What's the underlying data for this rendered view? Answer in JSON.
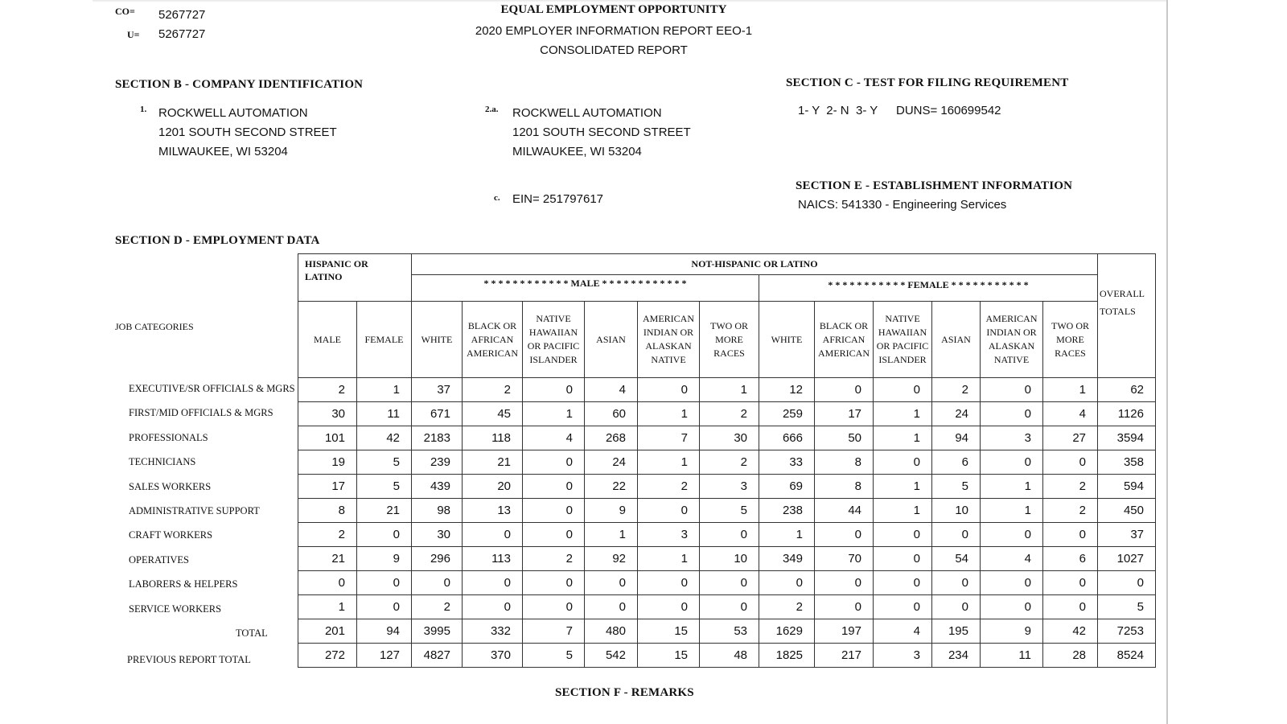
{
  "header": {
    "co_label": "CO=",
    "co_value": "5267727",
    "u_label": "U=",
    "u_value": "5267727",
    "title": "EQUAL EMPLOYMENT OPPORTUNITY",
    "subtitle": "2020 EMPLOYER INFORMATION REPORT EEO-1",
    "report_type": "CONSOLIDATED REPORT"
  },
  "section_b": {
    "title": "SECTION B - COMPANY IDENTIFICATION",
    "item1_label": "1.",
    "item1_lines": [
      "ROCKWELL AUTOMATION",
      "1201 SOUTH SECOND STREET",
      "MILWAUKEE, WI 53204"
    ],
    "item2a_label": "2.a.",
    "item2a_lines": [
      "ROCKWELL AUTOMATION",
      "1201 SOUTH SECOND STREET",
      "MILWAUKEE, WI 53204"
    ],
    "item_c_label": "c.",
    "ein": "EIN= 251797617"
  },
  "section_c": {
    "title": "SECTION C - TEST FOR FILING REQUIREMENT",
    "answers": "1- Y  2- N  3- Y",
    "duns": "DUNS= 160699542"
  },
  "section_e": {
    "title": "SECTION E - ESTABLISHMENT INFORMATION",
    "naics": "NAICS: 541330 - Engineering Services"
  },
  "section_d": {
    "title": "SECTION D - EMPLOYMENT DATA",
    "job_categories_label": "JOB CATEGORIES",
    "hispanic_header": "HISPANIC OR LATINO",
    "not_hispanic_header": "NOT-HISPANIC OR LATINO",
    "male_header": "* * * * * * * * * * * * MALE * * * * * * * * * * * *",
    "female_header": "* * * * * * * * * * * FEMALE * * * * * * * * * * *",
    "overall_header": "OVERALL TOTALS",
    "columns": [
      "MALE",
      "FEMALE",
      "WHITE",
      "BLACK OR AFRICAN AMERICAN",
      "NATIVE HAWAIIAN OR PACIFIC ISLANDER",
      "ASIAN",
      "AMERICAN INDIAN OR ALASKAN NATIVE",
      "TWO OR MORE RACES",
      "WHITE",
      "BLACK OR AFRICAN AMERICAN",
      "NATIVE HAWAIIAN OR PACIFIC ISLANDER",
      "ASIAN",
      "AMERICAN INDIAN OR ALASKAN NATIVE",
      "TWO OR MORE RACES"
    ],
    "rows": [
      {
        "label": "EXECUTIVE/SR OFFICIALS & MGRS",
        "values": [
          2,
          1,
          37,
          2,
          0,
          4,
          0,
          1,
          12,
          0,
          0,
          2,
          0,
          1,
          62
        ]
      },
      {
        "label": "FIRST/MID OFFICIALS & MGRS",
        "values": [
          30,
          11,
          671,
          45,
          1,
          60,
          1,
          2,
          259,
          17,
          1,
          24,
          0,
          4,
          1126
        ]
      },
      {
        "label": "PROFESSIONALS",
        "values": [
          101,
          42,
          2183,
          118,
          4,
          268,
          7,
          30,
          666,
          50,
          1,
          94,
          3,
          27,
          3594
        ]
      },
      {
        "label": "TECHNICIANS",
        "values": [
          19,
          5,
          239,
          21,
          0,
          24,
          1,
          2,
          33,
          8,
          0,
          6,
          0,
          0,
          358
        ]
      },
      {
        "label": "SALES WORKERS",
        "values": [
          17,
          5,
          439,
          20,
          0,
          22,
          2,
          3,
          69,
          8,
          1,
          5,
          1,
          2,
          594
        ]
      },
      {
        "label": "ADMINISTRATIVE SUPPORT",
        "values": [
          8,
          21,
          98,
          13,
          0,
          9,
          0,
          5,
          238,
          44,
          1,
          10,
          1,
          2,
          450
        ]
      },
      {
        "label": "CRAFT WORKERS",
        "values": [
          2,
          0,
          30,
          0,
          0,
          1,
          3,
          0,
          1,
          0,
          0,
          0,
          0,
          0,
          37
        ]
      },
      {
        "label": "OPERATIVES",
        "values": [
          21,
          9,
          296,
          113,
          2,
          92,
          1,
          10,
          349,
          70,
          0,
          54,
          4,
          6,
          1027
        ]
      },
      {
        "label": "LABORERS & HELPERS",
        "values": [
          0,
          0,
          0,
          0,
          0,
          0,
          0,
          0,
          0,
          0,
          0,
          0,
          0,
          0,
          0
        ]
      },
      {
        "label": "SERVICE WORKERS",
        "values": [
          1,
          0,
          2,
          0,
          0,
          0,
          0,
          0,
          2,
          0,
          0,
          0,
          0,
          0,
          5
        ]
      },
      {
        "label": "TOTAL",
        "values": [
          201,
          94,
          3995,
          332,
          7,
          480,
          15,
          53,
          1629,
          197,
          4,
          195,
          9,
          42,
          7253
        ]
      },
      {
        "label": "PREVIOUS REPORT TOTAL",
        "values": [
          272,
          127,
          4827,
          370,
          5,
          542,
          15,
          48,
          1825,
          217,
          3,
          234,
          11,
          28,
          8524
        ]
      }
    ]
  },
  "section_f": {
    "title": "SECTION F - REMARKS"
  }
}
